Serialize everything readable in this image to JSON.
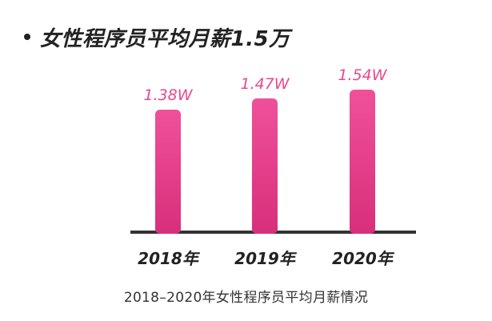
{
  "title": "女性程序员平均月薪1.5万",
  "caption": "2018–2020年女性程序员平均月薪情况",
  "colors": {
    "bar_top": "#f0509a",
    "bar_bottom": "#d82f7b",
    "label": "#e8488f",
    "axis": "#333333",
    "tick": "#222222"
  },
  "chart_data": {
    "type": "bar",
    "title": "女性程序员平均月薪1.5万",
    "xlabel": "",
    "ylabel": "",
    "categories": [
      "2018年",
      "2019年",
      "2020年"
    ],
    "values": [
      1.38,
      1.47,
      1.54
    ],
    "data_labels": [
      "1.38W",
      "1.47W",
      "1.54W"
    ],
    "unit": "W"
  }
}
